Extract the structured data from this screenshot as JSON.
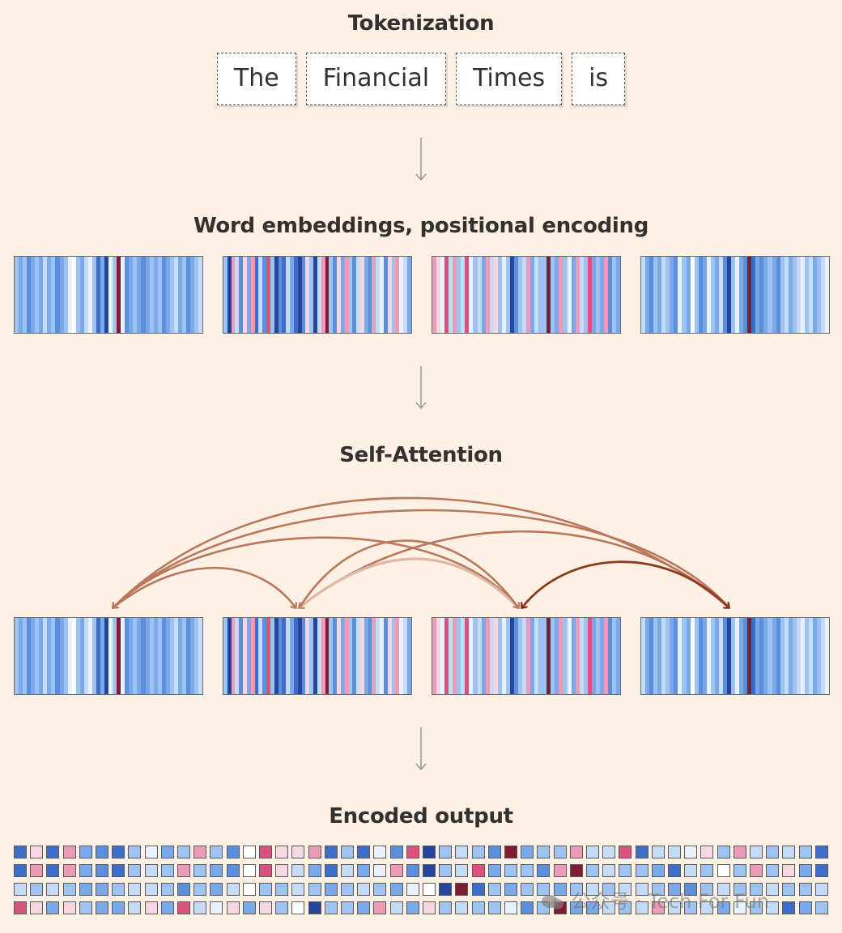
{
  "sections": {
    "tokenization": "Tokenization",
    "embeddings": "Word embeddings, positional encoding",
    "self_attention": "Self-Attention",
    "encoded_output": "Encoded output"
  },
  "tokens": [
    "The",
    "Financial",
    "Times",
    "is"
  ],
  "watermark": "公众号 · Tech For Fun",
  "colors": {
    "background": "#fdf1e5",
    "arrow": "#9a9791",
    "arc_strong": "#7a2a14",
    "arc_medium": "#b9775b",
    "arc_light": "#e0b8a3",
    "palette": [
      "#ffffff",
      "#e8f1fc",
      "#c6dcf6",
      "#9fc3f0",
      "#79a9e9",
      "#5b8fdc",
      "#3d6cc9",
      "#24459a",
      "#f6d6e0",
      "#ec9cb6",
      "#d8547d",
      "#7d1c34"
    ]
  },
  "embedding_stripes": [
    [
      3,
      4,
      3,
      5,
      4,
      3,
      4,
      2,
      4,
      3,
      5,
      4,
      3,
      1,
      0,
      3,
      4,
      2,
      1,
      3,
      6,
      4,
      7,
      1,
      3,
      11,
      1,
      5,
      4,
      3,
      4,
      5,
      4,
      3,
      4,
      3,
      5,
      4,
      3,
      2,
      4,
      3,
      5,
      4,
      3,
      2
    ],
    [
      3,
      7,
      9,
      2,
      5,
      8,
      4,
      9,
      6,
      2,
      5,
      10,
      3,
      7,
      5,
      6,
      2,
      4,
      6,
      7,
      5,
      8,
      3,
      7,
      2,
      9,
      11,
      3,
      5,
      8,
      4,
      9,
      3,
      5,
      2,
      8,
      4,
      5,
      9,
      2,
      1,
      5,
      8,
      3,
      9,
      1,
      2,
      4
    ],
    [
      9,
      8,
      1,
      10,
      2,
      9,
      3,
      2,
      10,
      1,
      3,
      2,
      4,
      9,
      2,
      8,
      3,
      1,
      3,
      7,
      5,
      3,
      2,
      9,
      4,
      2,
      3,
      3,
      11,
      3,
      4,
      9,
      3,
      1,
      4,
      9,
      2,
      3,
      10,
      4,
      3,
      4,
      9,
      5,
      3,
      4
    ],
    [
      2,
      4,
      5,
      3,
      4,
      2,
      3,
      4,
      5,
      1,
      3,
      4,
      0,
      3,
      5,
      4,
      1,
      3,
      4,
      2,
      5,
      7,
      3,
      1,
      4,
      5,
      11,
      6,
      4,
      5,
      4,
      3,
      4,
      5,
      3,
      2,
      4,
      3,
      2,
      1,
      3,
      2,
      4,
      3,
      2,
      1
    ]
  ],
  "output_grid": [
    [
      6,
      8,
      6,
      9,
      4,
      5,
      6,
      3,
      1,
      4,
      3,
      9,
      3,
      5,
      0,
      10,
      8,
      8,
      9,
      6,
      3,
      6,
      1,
      5,
      10,
      7,
      3,
      2,
      3,
      5,
      11,
      4,
      3,
      3,
      9,
      2,
      2,
      10,
      6,
      2,
      2,
      1,
      8,
      3,
      9,
      2,
      3,
      2,
      3,
      6
    ],
    [
      6,
      9,
      6,
      9,
      4,
      5,
      6,
      3,
      2,
      3,
      9,
      3,
      4,
      5,
      0,
      10,
      8,
      2,
      4,
      6,
      2,
      4,
      1,
      9,
      5,
      7,
      3,
      2,
      10,
      4,
      3,
      3,
      5,
      9,
      11,
      3,
      2,
      3,
      3,
      4,
      6,
      2,
      3,
      0,
      3,
      9,
      3,
      8,
      4,
      6
    ],
    [
      2,
      3,
      2,
      3,
      4,
      4,
      3,
      2,
      2,
      3,
      5,
      3,
      4,
      2,
      0,
      3,
      3,
      2,
      3,
      4,
      3,
      2,
      3,
      4,
      1,
      0,
      7,
      11,
      6,
      3,
      4,
      3,
      3,
      4,
      3,
      2,
      3,
      2,
      2,
      3,
      4,
      5,
      3,
      2,
      3,
      3,
      2,
      3,
      3,
      2
    ],
    [
      10,
      8,
      4,
      8,
      3,
      4,
      4,
      2,
      8,
      4,
      10,
      2,
      1,
      8,
      4,
      8,
      3,
      0,
      7,
      3,
      3,
      4,
      9,
      2,
      4,
      8,
      3,
      2,
      3,
      3,
      1,
      5,
      3,
      11,
      4,
      4,
      2,
      3,
      2,
      9,
      2,
      3,
      2,
      4,
      1,
      3,
      2,
      6,
      4,
      3
    ]
  ]
}
